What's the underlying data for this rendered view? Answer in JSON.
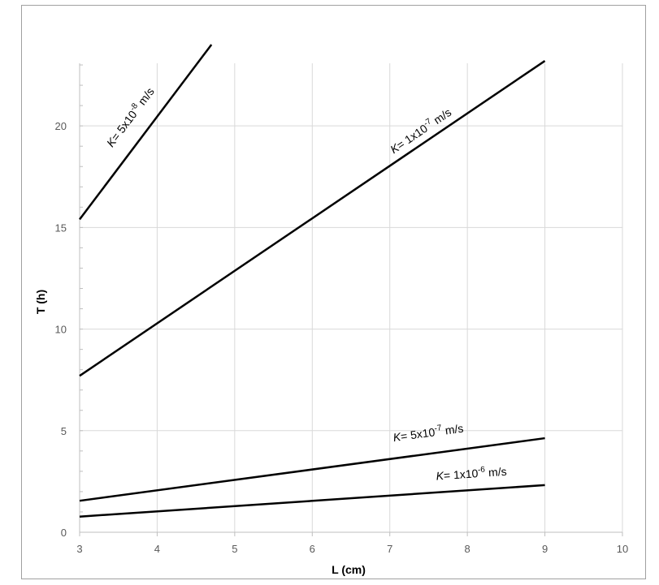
{
  "chart_data": {
    "type": "line",
    "xlabel": "L (cm)",
    "ylabel": "T (h)",
    "xlim": [
      3,
      10
    ],
    "ylim": [
      0,
      24
    ],
    "xticks": [
      3,
      4,
      5,
      6,
      7,
      8,
      9,
      10
    ],
    "yticks": [
      0,
      5,
      10,
      15,
      20
    ],
    "grid": true,
    "series": [
      {
        "name": "K= 5x10-8 m/s",
        "label_main": "K= 5x10",
        "label_exp": "-8",
        "label_unit": " m/s",
        "x": [
          3,
          4.7
        ],
        "y": [
          15.4,
          24.0
        ]
      },
      {
        "name": "K= 1x10-7 m/s",
        "label_main": "K= 1x10",
        "label_exp": "-7",
        "label_unit": " m/s",
        "x": [
          3,
          9
        ],
        "y": [
          7.7,
          23.2
        ]
      },
      {
        "name": "K= 5x10-7 m/s",
        "label_main": "K= 5x10",
        "label_exp": "-7",
        "label_unit": " m/s",
        "x": [
          3,
          9
        ],
        "y": [
          1.55,
          4.63
        ]
      },
      {
        "name": "K= 1x10-6 m/s",
        "label_main": "K= 1x10",
        "label_exp": "-6",
        "label_unit": " m/s",
        "x": [
          3,
          9
        ],
        "y": [
          0.77,
          2.32
        ]
      }
    ]
  }
}
